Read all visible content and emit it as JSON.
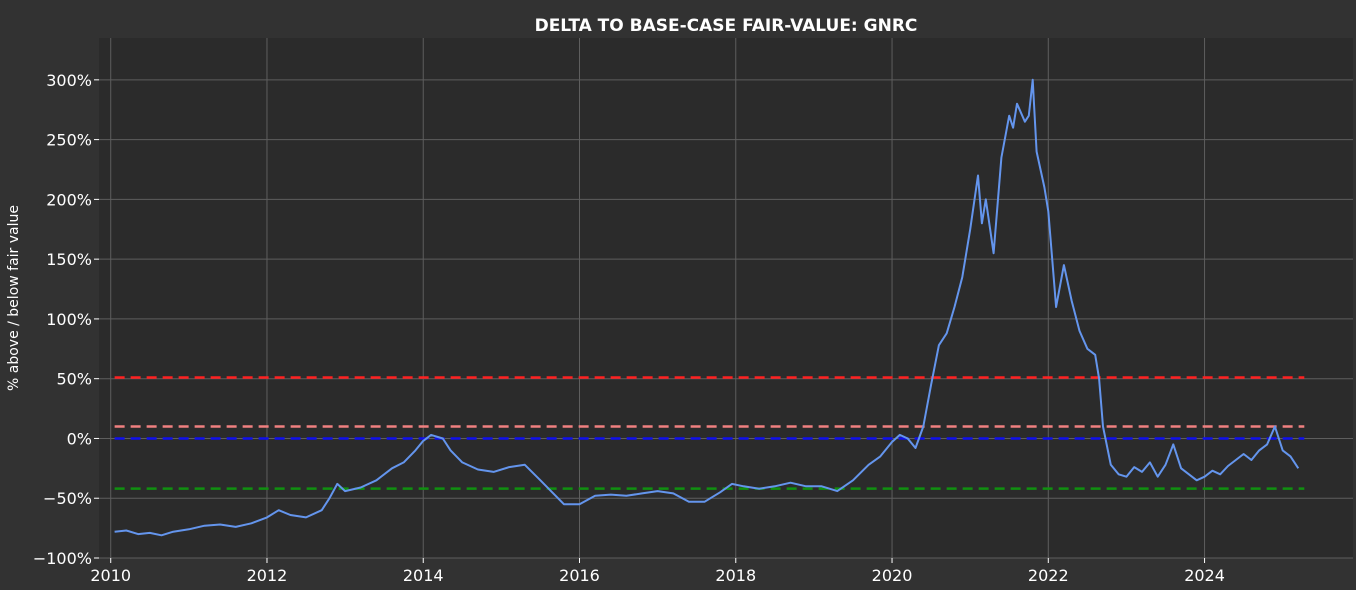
{
  "chart_data": {
    "type": "line",
    "title": "DELTA TO BASE-CASE FAIR-VALUE: GNRC",
    "xlabel": "",
    "ylabel": "% above / below fair value",
    "xlim": [
      2009.85,
      2025.9
    ],
    "ylim": [
      -100,
      335
    ],
    "x_ticks": [
      2010,
      2012,
      2014,
      2016,
      2018,
      2020,
      2022,
      2024
    ],
    "x_tick_labels": [
      "2010",
      "2012",
      "2014",
      "2016",
      "2018",
      "2020",
      "2022",
      "2024"
    ],
    "y_ticks": [
      -100,
      -50,
      0,
      50,
      100,
      150,
      200,
      250,
      300
    ],
    "y_tick_labels": [
      "−100%",
      "−50%",
      "0%",
      "50%",
      "100%",
      "150%",
      "200%",
      "250%",
      "300%"
    ],
    "grid": true,
    "background": "#2b2b2b",
    "reference_lines": [
      {
        "value": 51,
        "color": "#ff2020",
        "style": "dashed"
      },
      {
        "value": 10,
        "color": "#f08080",
        "style": "dashed"
      },
      {
        "value": 0,
        "color": "#1010ee",
        "style": "dashed"
      },
      {
        "value": -42,
        "color": "#109010",
        "style": "dashed"
      }
    ],
    "series": [
      {
        "color": "#6495ed",
        "x": [
          2010.05,
          2010.2,
          2010.35,
          2010.5,
          2010.65,
          2010.8,
          2011.0,
          2011.2,
          2011.4,
          2011.6,
          2011.8,
          2012.0,
          2012.15,
          2012.3,
          2012.5,
          2012.7,
          2012.8,
          2012.9,
          2013.0,
          2013.2,
          2013.4,
          2013.6,
          2013.75,
          2013.9,
          2014.0,
          2014.1,
          2014.25,
          2014.35,
          2014.5,
          2014.7,
          2014.9,
          2015.1,
          2015.3,
          2015.5,
          2015.65,
          2015.8,
          2016.0,
          2016.2,
          2016.4,
          2016.6,
          2016.8,
          2017.0,
          2017.2,
          2017.4,
          2017.6,
          2017.8,
          2017.95,
          2018.1,
          2018.3,
          2018.5,
          2018.7,
          2018.9,
          2019.1,
          2019.3,
          2019.5,
          2019.7,
          2019.85,
          2020.0,
          2020.1,
          2020.2,
          2020.3,
          2020.4,
          2020.5,
          2020.6,
          2020.7,
          2020.8,
          2020.9,
          2021.0,
          2021.1,
          2021.15,
          2021.2,
          2021.3,
          2021.4,
          2021.5,
          2021.55,
          2021.6,
          2021.7,
          2021.75,
          2021.8,
          2021.85,
          2021.95,
          2022.0,
          2022.05,
          2022.1,
          2022.2,
          2022.3,
          2022.4,
          2022.5,
          2022.6,
          2022.65,
          2022.7,
          2022.8,
          2022.9,
          2023.0,
          2023.1,
          2023.2,
          2023.3,
          2023.4,
          2023.5,
          2023.6,
          2023.7,
          2023.8,
          2023.9,
          2024.0,
          2024.1,
          2024.2,
          2024.3,
          2024.4,
          2024.5,
          2024.6,
          2024.7,
          2024.8,
          2024.9,
          2025.0,
          2025.1,
          2025.2
        ],
        "y": [
          -78,
          -77,
          -80,
          -79,
          -81,
          -78,
          -76,
          -73,
          -72,
          -74,
          -71,
          -66,
          -60,
          -64,
          -66,
          -60,
          -50,
          -38,
          -44,
          -41,
          -35,
          -25,
          -20,
          -10,
          -2,
          3,
          0,
          -10,
          -20,
          -26,
          -28,
          -24,
          -22,
          -35,
          -45,
          -55,
          -55,
          -48,
          -47,
          -48,
          -46,
          -44,
          -46,
          -53,
          -53,
          -45,
          -38,
          -40,
          -42,
          -40,
          -37,
          -40,
          -40,
          -44,
          -35,
          -22,
          -15,
          -3,
          3,
          0,
          -8,
          10,
          45,
          78,
          88,
          110,
          135,
          175,
          220,
          180,
          200,
          155,
          235,
          270,
          260,
          280,
          265,
          270,
          300,
          240,
          210,
          190,
          150,
          110,
          145,
          115,
          90,
          75,
          70,
          50,
          10,
          -22,
          -30,
          -32,
          -24,
          -28,
          -20,
          -32,
          -22,
          -5,
          -25,
          -30,
          -35,
          -32,
          -27,
          -30,
          -23,
          -18,
          -13,
          -18,
          -10,
          -5,
          10,
          -10,
          -15,
          -25
        ]
      }
    ]
  }
}
